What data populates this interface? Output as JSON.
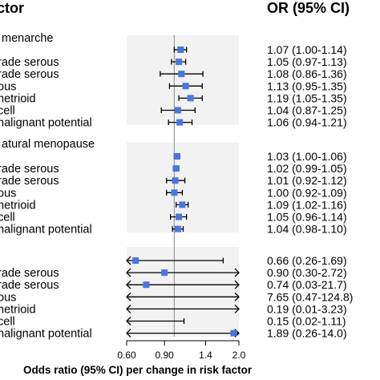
{
  "chart_data": {
    "type": "forest",
    "header_left": "ctor",
    "header_right": "OR (95% CI)",
    "xlabel": "Odds ratio (95% CI) per change in risk factor",
    "xscale": "log",
    "xticks": [
      0.6,
      0.9,
      1.4,
      2.0
    ],
    "xtick_labels": [
      "0.60",
      "0.90",
      "1.4",
      "2.0"
    ],
    "reference_line": 1.0,
    "marker_color": "#4a74e0",
    "panel_bg": "#f2f2f2",
    "groups": [
      {
        "title": "menarche",
        "rows": [
          {
            "label": "",
            "or": 1.07,
            "lo": 1.0,
            "hi": 1.14,
            "text": "1.07 (1.00-1.14)"
          },
          {
            "label": "rade serous",
            "or": 1.05,
            "lo": 0.97,
            "hi": 1.13,
            "text": "1.05 (0.97-1.13)"
          },
          {
            "label": "rade serous",
            "or": 1.08,
            "lo": 0.86,
            "hi": 1.36,
            "text": "1.08 (0.86-1.36)"
          },
          {
            "label": "ous",
            "or": 1.13,
            "lo": 0.95,
            "hi": 1.35,
            "text": "1.13 (0.95-1.35)"
          },
          {
            "label": "netrioid",
            "or": 1.19,
            "lo": 1.05,
            "hi": 1.35,
            "text": "1.19 (1.05-1.35)"
          },
          {
            "label": "cell",
            "or": 1.04,
            "lo": 0.87,
            "hi": 1.25,
            "text": "1.04 (0.87-1.25)"
          },
          {
            "label": "nalignant potential",
            "or": 1.06,
            "lo": 0.94,
            "hi": 1.21,
            "text": "1.06 (0.94-1.21)"
          }
        ]
      },
      {
        "title": "atural menopause",
        "rows": [
          {
            "label": "",
            "or": 1.03,
            "lo": 1.0,
            "hi": 1.06,
            "text": "1.03 (1.00-1.06)"
          },
          {
            "label": "rade serous",
            "or": 1.02,
            "lo": 0.99,
            "hi": 1.05,
            "text": "1.02 (0.99-1.05)"
          },
          {
            "label": "rade serous",
            "or": 1.01,
            "lo": 0.92,
            "hi": 1.12,
            "text": "1.01 (0.92-1.12)"
          },
          {
            "label": "ous",
            "or": 1.0,
            "lo": 0.92,
            "hi": 1.09,
            "text": "1.00 (0.92-1.09)"
          },
          {
            "label": "netrioid",
            "or": 1.09,
            "lo": 1.02,
            "hi": 1.16,
            "text": "1.09 (1.02-1.16)"
          },
          {
            "label": "cell",
            "or": 1.05,
            "lo": 0.96,
            "hi": 1.14,
            "text": "1.05 (0.96-1.14)"
          },
          {
            "label": "nalignant potential",
            "or": 1.04,
            "lo": 0.98,
            "hi": 1.1,
            "text": "1.04 (0.98-1.10)"
          }
        ]
      },
      {
        "title": "",
        "rows": [
          {
            "label": "",
            "or": 0.66,
            "lo": 0.26,
            "hi": 1.69,
            "text": "0.66 (0.26-1.69)"
          },
          {
            "label": "rade serous",
            "or": 0.9,
            "lo": 0.3,
            "hi": 2.72,
            "text": "0.90 (0.30-2.72)"
          },
          {
            "label": "rade serous",
            "or": 0.74,
            "lo": 0.03,
            "hi": 21.7,
            "text": "0.74 (0.03-21.7)"
          },
          {
            "label": "ous",
            "or": 7.65,
            "lo": 0.47,
            "hi": 124.8,
            "text": "7.65 (0.47-124.8)"
          },
          {
            "label": "netrioid",
            "or": 0.19,
            "lo": 0.01,
            "hi": 3.23,
            "text": "0.19 (0.01-3.23)"
          },
          {
            "label": "cell",
            "or": 0.15,
            "lo": 0.02,
            "hi": 1.11,
            "text": "0.15 (0.02-1.11)"
          },
          {
            "label": "nalignant potential",
            "or": 1.89,
            "lo": 0.26,
            "hi": 14.0,
            "text": "1.89 (0.26-14.0)"
          }
        ]
      }
    ]
  }
}
